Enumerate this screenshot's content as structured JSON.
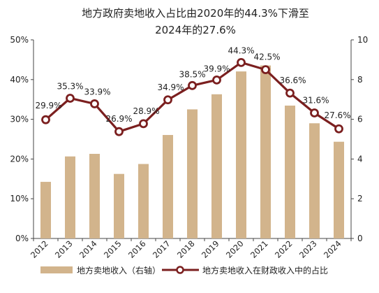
{
  "chart_data": {
    "type": "bar+line",
    "title_line1": "地方政府卖地收入占比由2020年的44.3%下滑至",
    "title_line2": "2024年的27.6%",
    "categories": [
      "2012",
      "2013",
      "2014",
      "2015",
      "2016",
      "2017",
      "2018",
      "2019",
      "2020",
      "2021",
      "2022",
      "2023",
      "2024"
    ],
    "series": [
      {
        "name": "地方卖地收入（右轴）",
        "type": "bar",
        "axis": "right",
        "values": [
          2.85,
          4.13,
          4.26,
          3.25,
          3.75,
          5.21,
          6.5,
          7.26,
          8.41,
          8.71,
          6.69,
          5.8,
          4.87
        ]
      },
      {
        "name": "地方卖地收入在财政收入中的占比",
        "type": "line",
        "axis": "left",
        "values": [
          29.9,
          35.3,
          33.9,
          26.9,
          28.9,
          34.9,
          38.5,
          39.9,
          44.3,
          42.5,
          36.6,
          31.6,
          27.6
        ],
        "labels": [
          "29.9%",
          "35.3%",
          "33.9%",
          "26.9%",
          "28.9%",
          "34.9%",
          "38.5%",
          "39.9%",
          "44.3%",
          "42.5%",
          "36.6%",
          "31.6%",
          "27.6%"
        ]
      }
    ],
    "y_left": {
      "min": 0,
      "max": 50,
      "ticks": [
        "0%",
        "10%",
        "20%",
        "30%",
        "40%",
        "50%"
      ]
    },
    "y_right": {
      "min": 0,
      "max": 10,
      "ticks": [
        "0",
        "2",
        "4",
        "6",
        "8",
        "10"
      ]
    },
    "grid": false,
    "legend": "bottom",
    "colors": {
      "bar": "#d2b48c",
      "line": "#7b1f1f",
      "marker_fill": "#ffffff"
    }
  }
}
